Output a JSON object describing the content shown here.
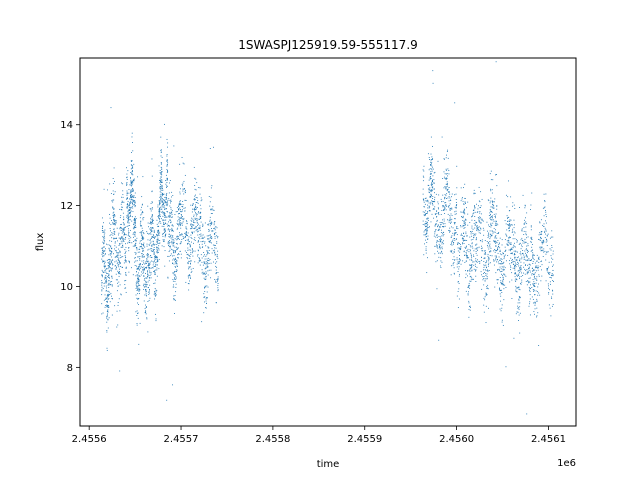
{
  "chart_data": {
    "type": "scatter",
    "title": "1SWASPJ125919.59-555117.9",
    "xlabel": "time",
    "ylabel": "flux",
    "x_offset_label": "1e6",
    "xlim": [
      2.45559,
      2.45613
    ],
    "ylim": [
      6.55,
      15.65
    ],
    "x_ticks": [
      2.4556,
      2.4557,
      2.4558,
      2.4559,
      2.456,
      2.4561
    ],
    "x_tick_labels": [
      "2.4556",
      "2.4557",
      "2.4558",
      "2.4559",
      "2.4560",
      "2.4561"
    ],
    "y_ticks": [
      8,
      10,
      12,
      14
    ],
    "y_tick_labels": [
      "8",
      "10",
      "12",
      "14"
    ],
    "grid": false,
    "legend": "none",
    "color": "#1f77b4",
    "series": [
      {
        "clusters": [
          {
            "x_start": 2.455613,
            "x_end": 2.455625,
            "y_center": 10.3,
            "y_spread": 1.6
          },
          {
            "x_start": 2.455625,
            "x_end": 2.45564,
            "y_center": 11.0,
            "y_spread": 1.5
          },
          {
            "x_start": 2.45564,
            "x_end": 2.45565,
            "y_center": 12.0,
            "y_spread": 1.4
          },
          {
            "x_start": 2.45565,
            "x_end": 2.455663,
            "y_center": 10.6,
            "y_spread": 1.6
          },
          {
            "x_start": 2.455663,
            "x_end": 2.455675,
            "y_center": 11.0,
            "y_spread": 1.5
          },
          {
            "x_start": 2.455675,
            "x_end": 2.455685,
            "y_center": 12.0,
            "y_spread": 1.4
          },
          {
            "x_start": 2.455685,
            "x_end": 2.4557,
            "y_center": 11.1,
            "y_spread": 1.5
          },
          {
            "x_start": 2.4557,
            "x_end": 2.45572,
            "y_center": 11.3,
            "y_spread": 1.5
          },
          {
            "x_start": 2.45572,
            "x_end": 2.45574,
            "y_center": 11.0,
            "y_spread": 1.5
          },
          {
            "x_start": 2.455963,
            "x_end": 2.45598,
            "y_center": 12.0,
            "y_spread": 1.5
          },
          {
            "x_start": 2.45598,
            "x_end": 2.456,
            "y_center": 11.8,
            "y_spread": 1.5
          },
          {
            "x_start": 2.456,
            "x_end": 2.45602,
            "y_center": 11.0,
            "y_spread": 1.6
          },
          {
            "x_start": 2.45602,
            "x_end": 2.45604,
            "y_center": 11.0,
            "y_spread": 1.6
          },
          {
            "x_start": 2.45604,
            "x_end": 2.45606,
            "y_center": 10.8,
            "y_spread": 1.6
          },
          {
            "x_start": 2.45606,
            "x_end": 2.45608,
            "y_center": 10.6,
            "y_spread": 1.5
          },
          {
            "x_start": 2.45608,
            "x_end": 2.456105,
            "y_center": 10.8,
            "y_spread": 1.5
          }
        ]
      }
    ]
  }
}
